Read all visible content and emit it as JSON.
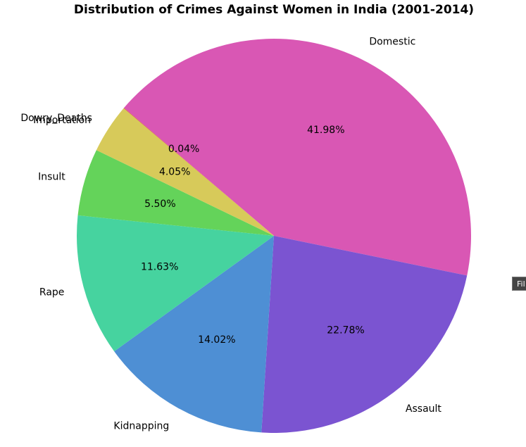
{
  "chart_data": {
    "type": "pie",
    "title": "Distribution of Crimes Against Women in India (2001-2014)",
    "categories": [
      "Domestic",
      "Assault",
      "Kidnapping",
      "Rape",
      "Insult",
      "Dowry_Deaths",
      "Importation"
    ],
    "values": [
      41.98,
      22.78,
      14.02,
      11.63,
      5.5,
      4.05,
      0.04
    ],
    "percent_labels": [
      "41.98%",
      "22.78%",
      "14.02%",
      "11.63%",
      "5.50%",
      "4.05%",
      "0.04%"
    ],
    "colors": [
      "#d957b4",
      "#7b54d1",
      "#4e8fd4",
      "#46d39f",
      "#64d35a",
      "#d7ca5a",
      "#d55454"
    ],
    "start_angle_deg": 139.5,
    "direction": "clockwise"
  },
  "tooltip": {
    "text": "Fil"
  }
}
